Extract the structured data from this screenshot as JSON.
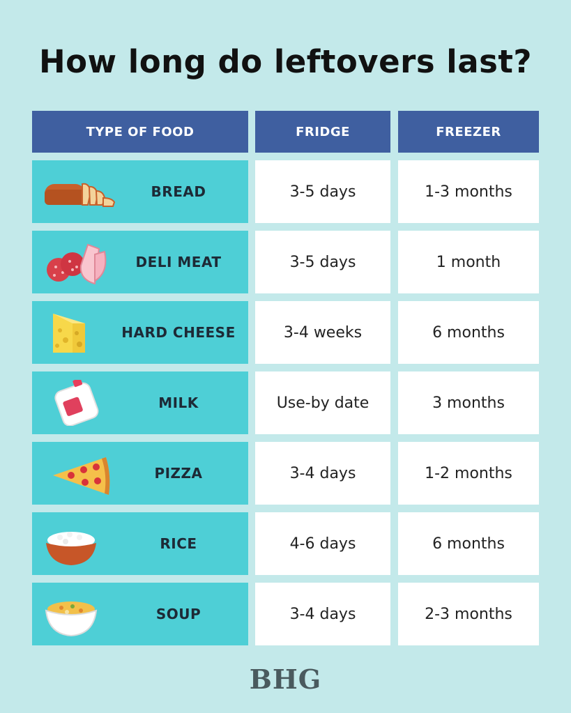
{
  "title": "How long do leftovers last?",
  "headers": {
    "food": "TYPE OF FOOD",
    "fridge": "FRIDGE",
    "freezer": "FREEZER"
  },
  "rows": [
    {
      "food": "BREAD",
      "icon": "bread-icon",
      "fridge": "3-5 days",
      "freezer": "1-3 months"
    },
    {
      "food": "DELI MEAT",
      "icon": "deli-meat-icon",
      "fridge": "3-5 days",
      "freezer": "1 month"
    },
    {
      "food": "HARD CHEESE",
      "icon": "cheese-icon",
      "fridge": "3-4 weeks",
      "freezer": "6 months"
    },
    {
      "food": "MILK",
      "icon": "milk-jug-icon",
      "fridge": "Use-by date",
      "freezer": "3 months"
    },
    {
      "food": "PIZZA",
      "icon": "pizza-slice-icon",
      "fridge": "3-4 days",
      "freezer": "1-2 months"
    },
    {
      "food": "RICE",
      "icon": "rice-bowl-icon",
      "fridge": "4-6 days",
      "freezer": "6 months"
    },
    {
      "food": "SOUP",
      "icon": "soup-bowl-icon",
      "fridge": "3-4 days",
      "freezer": "2-3 months"
    }
  ],
  "logo": "BHG",
  "colors": {
    "background": "#c3e9ea",
    "header": "#3f5fa0",
    "food_cell": "#4ecfd6",
    "value_cell": "#ffffff"
  }
}
